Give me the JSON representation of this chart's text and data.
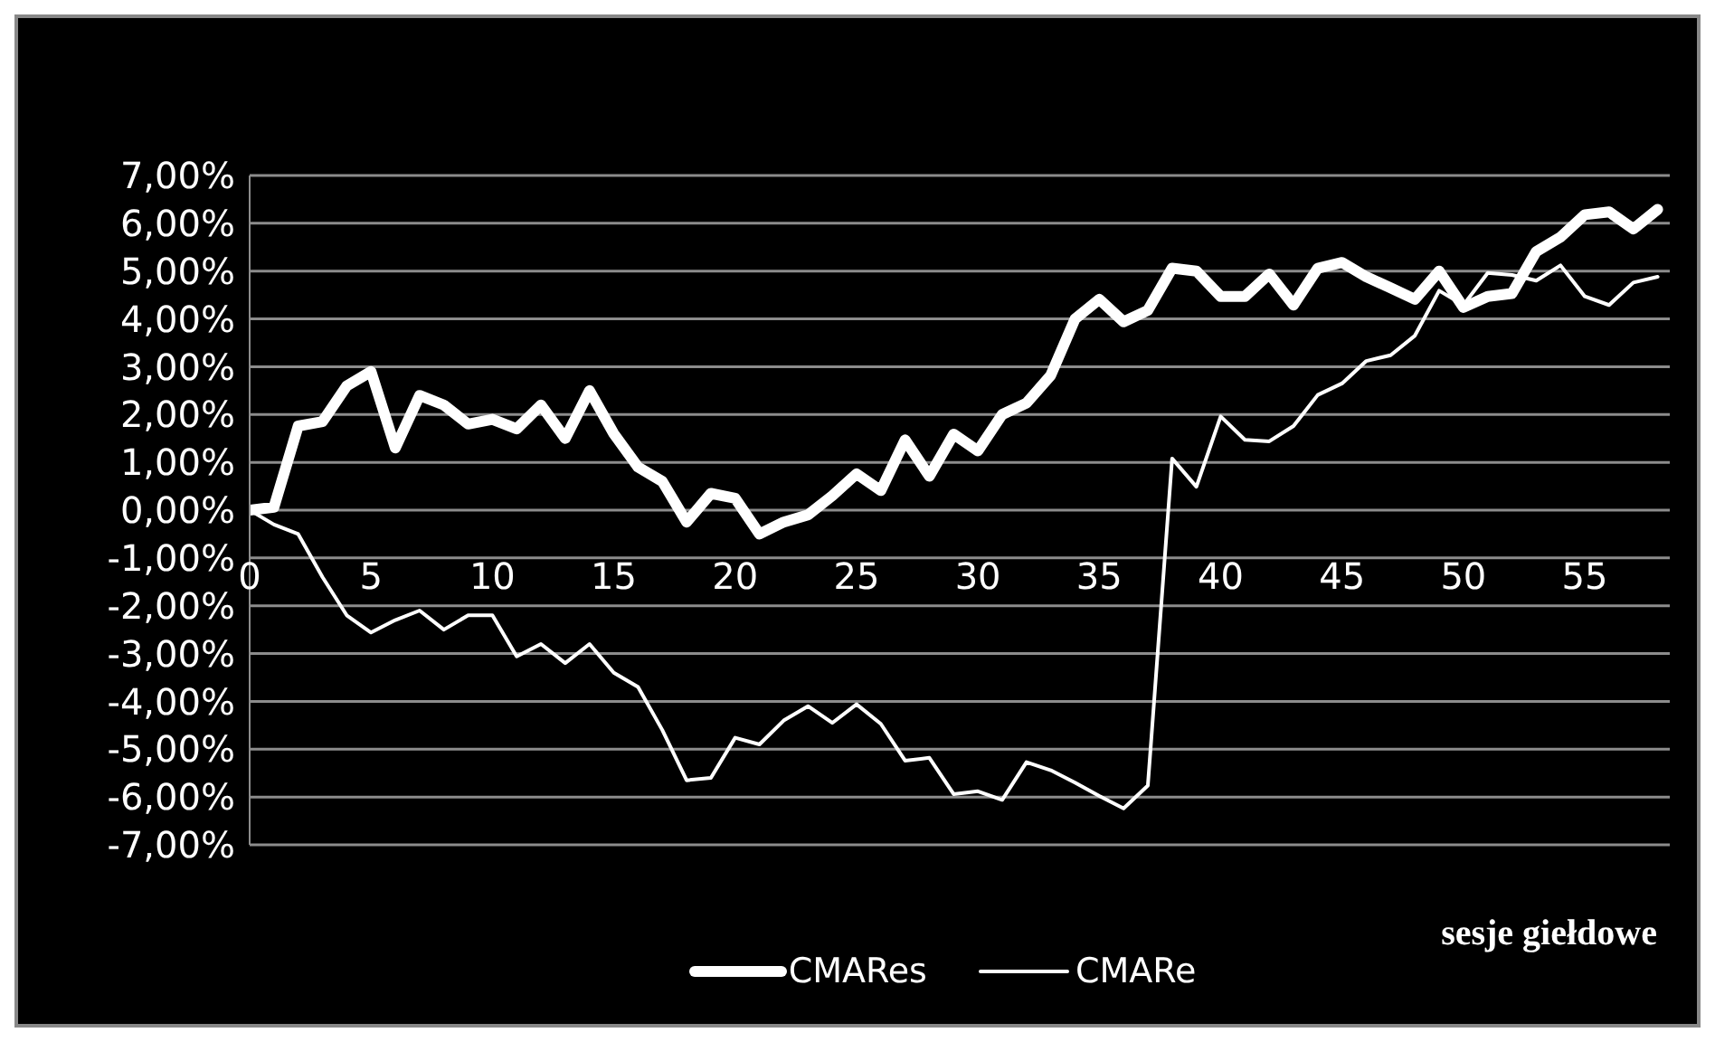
{
  "chart_data": {
    "type": "line",
    "xlabel": "sesje giełdowe",
    "x": [
      0,
      1,
      2,
      3,
      4,
      5,
      6,
      7,
      8,
      9,
      10,
      11,
      12,
      13,
      14,
      15,
      16,
      17,
      18,
      19,
      20,
      21,
      22,
      23,
      24,
      25,
      26,
      27,
      28,
      29,
      30,
      31,
      32,
      33,
      34,
      35,
      36,
      37,
      38,
      39,
      40,
      41,
      42,
      43,
      44,
      45,
      46,
      47,
      48,
      49,
      50,
      51,
      52,
      53,
      54,
      55,
      56,
      57,
      58
    ],
    "series": [
      {
        "name": "CMARes",
        "color": "#ffffff",
        "values": [
          0,
          0.06,
          1.76,
          1.85,
          2.6,
          2.9,
          1.3,
          2.4,
          2.2,
          1.8,
          1.9,
          1.7,
          2.2,
          1.5,
          2.5,
          1.6,
          0.9,
          0.6,
          -0.25,
          0.35,
          0.25,
          -0.5,
          -0.25,
          -0.1,
          0.3,
          0.76,
          0.41,
          1.47,
          0.71,
          1.59,
          1.24,
          2.0,
          2.24,
          2.82,
          4.0,
          4.41,
          3.94,
          4.18,
          5.06,
          5.0,
          4.47,
          4.47,
          4.94,
          4.29,
          5.06,
          5.18,
          4.88,
          4.65,
          4.41,
          5.0,
          4.24,
          4.47,
          4.53,
          5.41,
          5.71,
          6.18,
          6.24,
          5.88,
          6.29
        ]
      },
      {
        "name": "CMARe",
        "color": "#ffffff",
        "values": [
          0,
          -0.3,
          -0.5,
          -1.4,
          -2.2,
          -2.56,
          -2.3,
          -2.1,
          -2.5,
          -2.2,
          -2.2,
          -3.06,
          -2.8,
          -3.2,
          -2.8,
          -3.4,
          -3.7,
          -4.6,
          -5.65,
          -5.6,
          -4.76,
          -4.9,
          -4.4,
          -4.1,
          -4.45,
          -4.06,
          -4.47,
          -5.24,
          -5.18,
          -5.94,
          -5.88,
          -6.06,
          -5.27,
          -5.44,
          -5.7,
          -5.98,
          -6.24,
          -5.76,
          1.08,
          0.49,
          1.96,
          1.47,
          1.44,
          1.76,
          2.41,
          2.65,
          3.12,
          3.24,
          3.65,
          4.59,
          4.29,
          4.96,
          4.92,
          4.8,
          5.12,
          4.47,
          4.29,
          4.76,
          4.88
        ]
      }
    ],
    "xlim": [
      0,
      58.5
    ],
    "xticks": [
      0,
      5,
      10,
      15,
      20,
      25,
      30,
      35,
      40,
      45,
      50,
      55
    ],
    "ylim": [
      -7,
      7
    ],
    "yticks": [
      {
        "value": -7,
        "label": "-7,00%"
      },
      {
        "value": -6,
        "label": "-6,00%"
      },
      {
        "value": -5,
        "label": "-5,00%"
      },
      {
        "value": -4,
        "label": "-4,00%"
      },
      {
        "value": -3,
        "label": "-3,00%"
      },
      {
        "value": -2,
        "label": "-2,00%"
      },
      {
        "value": -1,
        "label": "-1,00%"
      },
      {
        "value": 0,
        "label": "0,00%"
      },
      {
        "value": 1,
        "label": "1,00%"
      },
      {
        "value": 2,
        "label": "2,00%"
      },
      {
        "value": 3,
        "label": "3,00%"
      },
      {
        "value": 4,
        "label": "4,00%"
      },
      {
        "value": 5,
        "label": "5,00%"
      },
      {
        "value": 6,
        "label": "6,00%"
      },
      {
        "value": 7,
        "label": "7,00%"
      }
    ],
    "grid": "y",
    "legend": "bottom",
    "marker": "none",
    "line_style": "solid"
  }
}
